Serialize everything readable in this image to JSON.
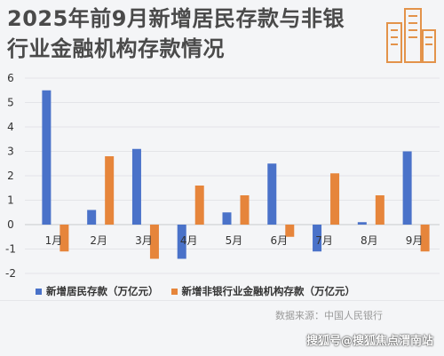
{
  "title_lines": [
    "2025年前9月新增居民存款与非银",
    "行业金融机构存款情况"
  ],
  "source": "数据来源：中国人民银行",
  "watermark": "搜狐号@搜狐焦点渭南站",
  "colors": {
    "household": "#4a72c9",
    "nonbank": "#e6853b",
    "grid": "#e3e4e8",
    "title": "#4a4a4a"
  },
  "legend": [
    {
      "label": "新增居民存款（万亿元）",
      "color": "#4a72c9"
    },
    {
      "label": "新增非银行业金融机构存款（万亿元）",
      "color": "#e6853b"
    }
  ],
  "chart_data": {
    "type": "bar",
    "categories": [
      "1月",
      "2月",
      "3月",
      "4月",
      "5月",
      "6月",
      "7月",
      "8月",
      "9月"
    ],
    "series": [
      {
        "name": "新增居民存款（万亿元）",
        "values": [
          5.5,
          0.6,
          3.1,
          -1.4,
          0.5,
          2.5,
          -1.1,
          0.1,
          3.0
        ]
      },
      {
        "name": "新增非银行业金融机构存款（万亿元）",
        "values": [
          -1.1,
          2.8,
          -1.4,
          1.6,
          1.2,
          -0.5,
          2.1,
          1.2,
          -1.1
        ]
      }
    ],
    "y_ticks": [
      "6",
      "5",
      "4",
      "3",
      "2",
      "1",
      "0",
      "-1",
      "-2"
    ],
    "ylim": [
      -2,
      6
    ],
    "grid": true,
    "legend_position": "bottom"
  }
}
